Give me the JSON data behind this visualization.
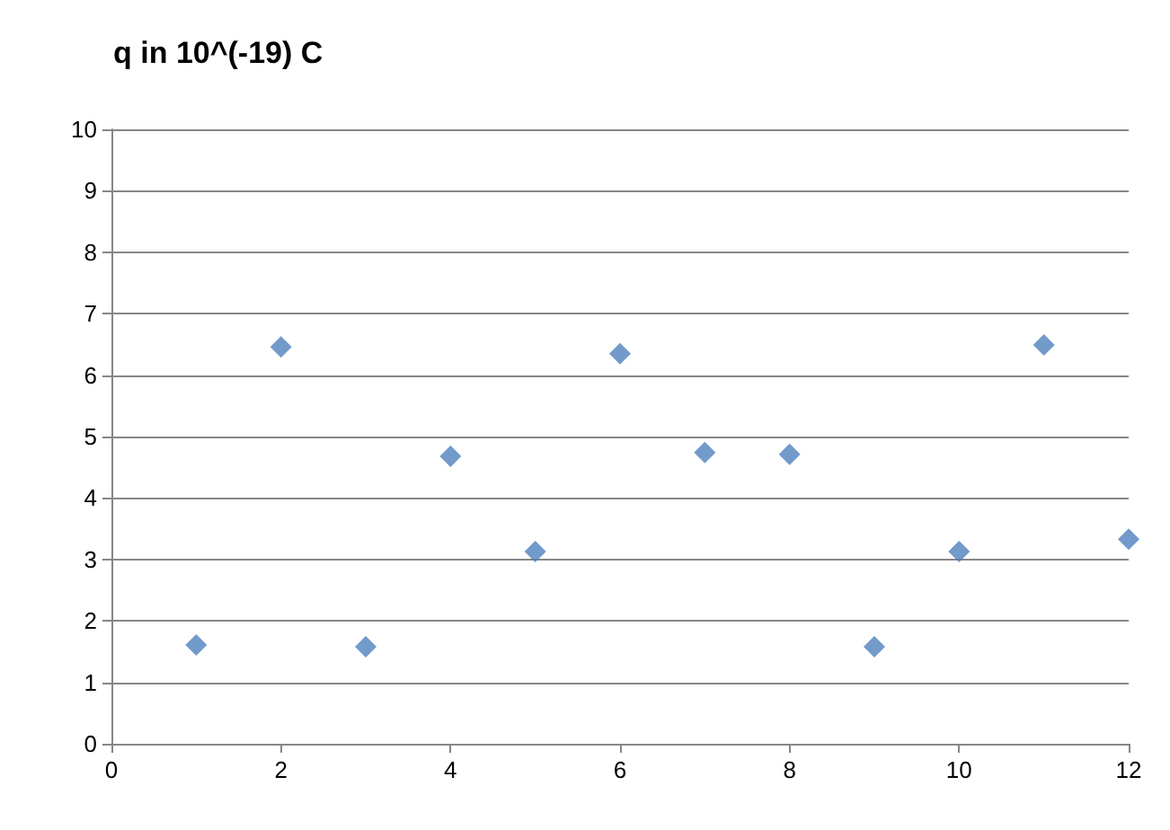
{
  "chart_data": {
    "type": "scatter",
    "title": "q in 10^(-19) C",
    "x": [
      1,
      2,
      3,
      4,
      5,
      6,
      7,
      8,
      9,
      10,
      11,
      12
    ],
    "values": [
      1.61,
      6.46,
      1.58,
      4.68,
      3.13,
      6.35,
      4.74,
      4.71,
      1.58,
      3.13,
      6.49,
      3.33
    ],
    "color": "#4f81bd",
    "marker": "diamond",
    "xlim": [
      0,
      12
    ],
    "xticks": [
      0,
      2,
      4,
      6,
      8,
      10,
      12
    ],
    "ylim": [
      0,
      10
    ],
    "yticks": [
      0,
      1,
      2,
      3,
      4,
      5,
      6,
      7,
      8,
      9,
      10
    ],
    "grid": "y"
  }
}
